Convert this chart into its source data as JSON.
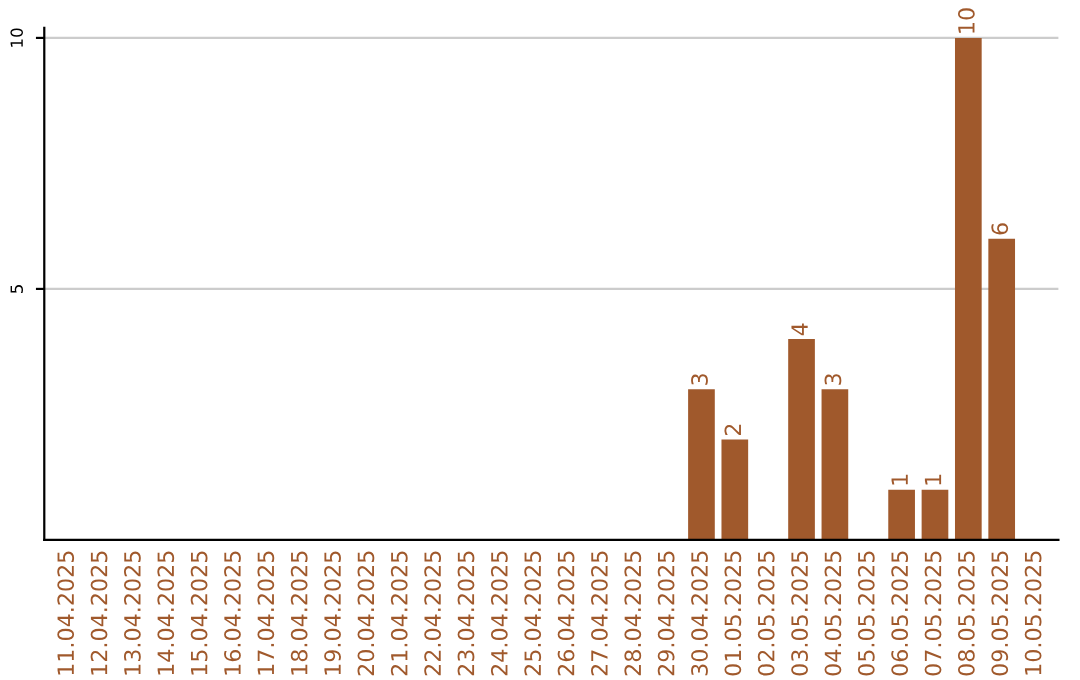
{
  "chart_data": {
    "type": "bar",
    "categories": [
      "11.04.2025",
      "12.04.2025",
      "13.04.2025",
      "14.04.2025",
      "15.04.2025",
      "16.04.2025",
      "17.04.2025",
      "18.04.2025",
      "19.04.2025",
      "20.04.2025",
      "21.04.2025",
      "22.04.2025",
      "23.04.2025",
      "24.04.2025",
      "25.04.2025",
      "26.04.2025",
      "27.04.2025",
      "28.04.2025",
      "29.04.2025",
      "30.04.2025",
      "01.05.2025",
      "02.05.2025",
      "03.05.2025",
      "04.05.2025",
      "05.05.2025",
      "06.05.2025",
      "07.05.2025",
      "08.05.2025",
      "09.05.2025",
      "10.05.2025"
    ],
    "values": [
      0,
      0,
      0,
      0,
      0,
      0,
      0,
      0,
      0,
      0,
      0,
      0,
      0,
      0,
      0,
      0,
      0,
      0,
      0,
      3,
      2,
      0,
      4,
      3,
      0,
      1,
      1,
      10,
      6,
      0
    ],
    "value_labels": [
      null,
      null,
      null,
      null,
      null,
      null,
      null,
      null,
      null,
      null,
      null,
      null,
      null,
      null,
      null,
      null,
      null,
      null,
      null,
      "3",
      "2",
      null,
      "4",
      "3",
      null,
      "1",
      "1",
      "10",
      "6",
      null
    ],
    "color": "#a0592c",
    "ylim": [
      0,
      10.2
    ],
    "yticks": [
      5,
      10
    ],
    "grid": "y"
  }
}
